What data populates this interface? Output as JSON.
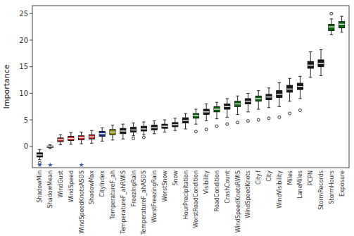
{
  "chart_data": {
    "type": "box",
    "ylabel": "Importance",
    "categories": [
      "ShadowMin",
      "ShadowMean",
      "WindGust",
      "WindSpeed",
      "WindSpeedKnotsASOS",
      "ShadowMax",
      "CityIndex",
      "TemperatureF_ah",
      "TemperatureF_ahRWIS",
      "FreezingRain",
      "TemperatureF_ahASOS",
      "WorstFreezingRain",
      "WorstSnow",
      "Snow",
      "HourPrecipitation",
      "WorstRoadCondition",
      "Visibility",
      "RoadCondition",
      "CrashCount",
      "WindSpeedKnotsRWIS",
      "WindSpeedKnots",
      "City.f",
      "City",
      "WindVisibility",
      "Miles",
      "LaneMiles",
      "PCPN",
      "StormRecords",
      "StormHours",
      "Exposure"
    ],
    "colors": [
      "#1a1a1a",
      "#1a1a1a",
      "#cc2222",
      "#cc2222",
      "#cc2222",
      "#cc2222",
      "#1a3399",
      "#888800",
      "#1a1a1a",
      "#1a1a1a",
      "#1a1a1a",
      "#1a1a1a",
      "#1a1a1a",
      "#1a1a1a",
      "#1a1a1a",
      "#006600",
      "#1a1a1a",
      "#006600",
      "#1a1a1a",
      "#006600",
      "#1a1a1a",
      "#006600",
      "#1a1a1a",
      "#1a1a1a",
      "#1a1a1a",
      "#1a1a1a",
      "#1a1a1a",
      "#1a1a1a",
      "#006600",
      "#006600"
    ],
    "boxes": [
      {
        "med": -1.6,
        "q1": -2.0,
        "q3": -1.2,
        "whislo": -2.5,
        "whishi": -0.6,
        "fliers": [
          -3.1
        ]
      },
      {
        "med": -0.05,
        "q1": -0.2,
        "q3": 0.1,
        "whislo": -0.4,
        "whishi": 0.3,
        "fliers": []
      },
      {
        "med": 1.3,
        "q1": 0.9,
        "q3": 1.6,
        "whislo": 0.3,
        "whishi": 2.2,
        "fliers": []
      },
      {
        "med": 1.5,
        "q1": 1.1,
        "q3": 1.9,
        "whislo": 0.4,
        "whishi": 2.6,
        "fliers": []
      },
      {
        "med": 1.65,
        "q1": 1.25,
        "q3": 2.0,
        "whislo": 0.5,
        "whishi": 2.7,
        "fliers": []
      },
      {
        "med": 1.8,
        "q1": 1.4,
        "q3": 2.2,
        "whislo": 0.6,
        "whishi": 3.0,
        "fliers": []
      },
      {
        "med": 2.4,
        "q1": 1.9,
        "q3": 2.85,
        "whislo": 1.0,
        "whishi": 3.5,
        "fliers": []
      },
      {
        "med": 2.7,
        "q1": 2.2,
        "q3": 3.2,
        "whislo": 1.2,
        "whishi": 4.0,
        "fliers": []
      },
      {
        "med": 2.9,
        "q1": 2.4,
        "q3": 3.4,
        "whislo": 1.4,
        "whishi": 4.2,
        "fliers": []
      },
      {
        "med": 3.1,
        "q1": 2.7,
        "q3": 3.6,
        "whislo": 2.0,
        "whishi": 4.4,
        "fliers": [
          1.5
        ]
      },
      {
        "med": 3.3,
        "q1": 2.9,
        "q3": 3.8,
        "whislo": 2.2,
        "whishi": 4.6,
        "fliers": [
          1.7
        ]
      },
      {
        "med": 3.5,
        "q1": 3.1,
        "q3": 4.0,
        "whislo": 2.4,
        "whishi": 4.8,
        "fliers": []
      },
      {
        "med": 3.8,
        "q1": 3.4,
        "q3": 4.2,
        "whislo": 2.7,
        "whishi": 5.0,
        "fliers": []
      },
      {
        "med": 4.1,
        "q1": 3.7,
        "q3": 4.5,
        "whislo": 3.0,
        "whishi": 5.3,
        "fliers": []
      },
      {
        "med": 4.9,
        "q1": 4.4,
        "q3": 5.4,
        "whislo": 3.3,
        "whishi": 6.2,
        "fliers": []
      },
      {
        "med": 5.8,
        "q1": 5.3,
        "q3": 6.2,
        "whislo": 4.2,
        "whishi": 7.0,
        "fliers": [
          2.8
        ]
      },
      {
        "med": 6.5,
        "q1": 6.0,
        "q3": 7.0,
        "whislo": 4.8,
        "whishi": 8.0,
        "fliers": [
          3.2
        ]
      },
      {
        "med": 7.0,
        "q1": 6.5,
        "q3": 7.5,
        "whislo": 5.2,
        "whishi": 8.3,
        "fliers": [
          3.8
        ]
      },
      {
        "med": 7.5,
        "q1": 7.0,
        "q3": 8.0,
        "whislo": 5.5,
        "whishi": 9.0,
        "fliers": [
          4.2
        ]
      },
      {
        "med": 8.0,
        "q1": 7.5,
        "q3": 8.5,
        "whislo": 6.0,
        "whishi": 9.5,
        "fliers": [
          4.5
        ]
      },
      {
        "med": 8.5,
        "q1": 8.0,
        "q3": 9.0,
        "whislo": 6.5,
        "whishi": 10.0,
        "fliers": [
          4.8
        ]
      },
      {
        "med": 9.0,
        "q1": 8.5,
        "q3": 9.5,
        "whislo": 7.0,
        "whishi": 10.5,
        "fliers": [
          5.0
        ]
      },
      {
        "med": 9.3,
        "q1": 8.8,
        "q3": 9.8,
        "whislo": 7.3,
        "whishi": 11.0,
        "fliers": [
          5.3
        ]
      },
      {
        "med": 9.8,
        "q1": 9.2,
        "q3": 10.5,
        "whislo": 7.5,
        "whishi": 12.0,
        "fliers": [
          5.5
        ]
      },
      {
        "med": 10.8,
        "q1": 10.2,
        "q3": 11.5,
        "whislo": 8.5,
        "whishi": 12.8,
        "fliers": [
          6.2
        ]
      },
      {
        "med": 11.3,
        "q1": 10.7,
        "q3": 11.9,
        "whislo": 9.0,
        "whishi": 13.2,
        "fliers": [
          6.8
        ]
      },
      {
        "med": 15.3,
        "q1": 14.7,
        "q3": 16.0,
        "whislo": 13.0,
        "whishi": 17.8,
        "fliers": []
      },
      {
        "med": 15.6,
        "q1": 15.0,
        "q3": 16.3,
        "whislo": 13.3,
        "whishi": 18.2,
        "fliers": []
      },
      {
        "med": 22.5,
        "q1": 21.8,
        "q3": 23.0,
        "whislo": 21.0,
        "whishi": 24.0,
        "fliers": [
          25.0
        ]
      },
      {
        "med": 23.0,
        "q1": 22.3,
        "q3": 23.5,
        "whislo": 21.5,
        "whishi": 24.5,
        "fliers": []
      }
    ],
    "annotations": [
      {
        "category": "ShadowMin",
        "y": -3.5,
        "text": "★",
        "color": "#3355bb"
      },
      {
        "category": "ShadowMean",
        "y": -3.5,
        "text": "★",
        "color": "#3355bb"
      },
      {
        "category": "WindSpeedKnotsASOS",
        "y": -3.5,
        "text": "★",
        "color": "#3355bb"
      }
    ],
    "ylim": [
      -4.0,
      26.5
    ],
    "yticks": [
      0,
      5,
      10,
      15,
      20,
      25
    ],
    "grid": false
  }
}
